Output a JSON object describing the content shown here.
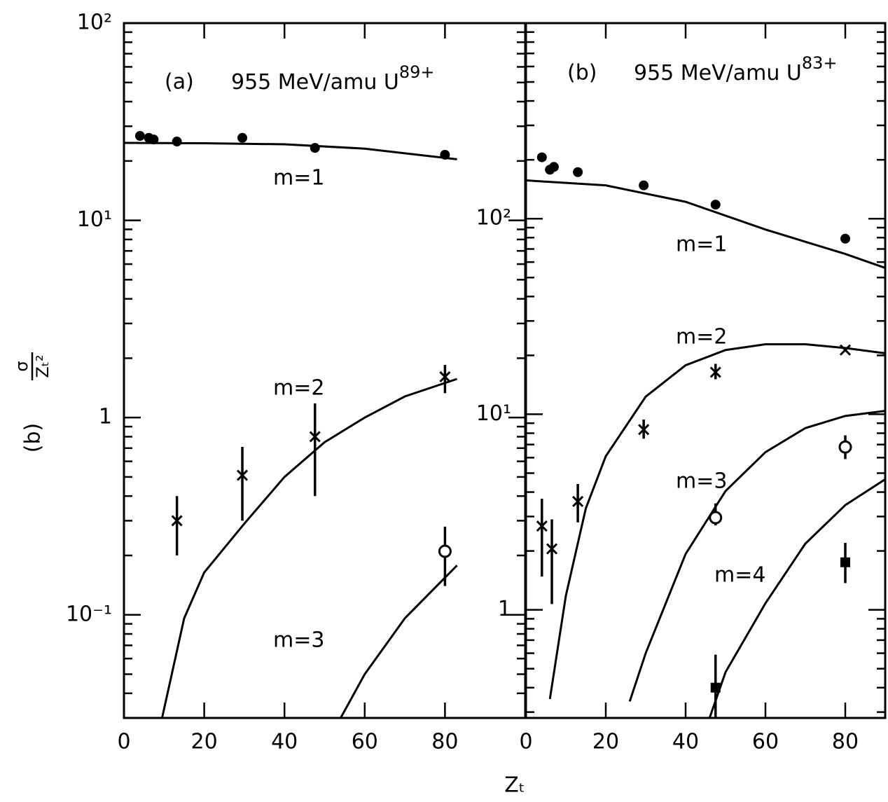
{
  "chart_data": [
    {
      "type": "line",
      "panel_label": "(a)",
      "title": "955 MeV/amu U",
      "title_sup": "89+",
      "log_y": true,
      "minor_ticks": true,
      "xlim": [
        0,
        100
      ],
      "xticks": [
        0,
        20,
        40,
        60,
        80
      ],
      "ylim": [
        0.03,
        100
      ],
      "yticks": [
        {
          "value": 0.1,
          "label": "10⁻¹"
        },
        1,
        {
          "value": 10,
          "label": "10¹"
        },
        {
          "value": 100,
          "label": "10²"
        }
      ],
      "series": [
        {
          "name": "m=1",
          "marker": "dot",
          "x": [
            4,
            6.2,
            7.4,
            13.2,
            29.5,
            47.6,
            80
          ],
          "values": [
            26.8,
            26.2,
            25.7,
            25.1,
            26.2,
            23.3,
            21.5
          ],
          "curve_x": [
            0,
            20,
            40,
            60,
            83
          ],
          "curve_values": [
            24.7,
            24.6,
            24.3,
            23.1,
            20.4
          ]
        },
        {
          "name": "m=2",
          "marker": "x",
          "x": [
            13.2,
            29.5,
            47.6,
            80
          ],
          "values": [
            0.3,
            0.51,
            0.8,
            1.61
          ],
          "err_low": [
            0.2,
            0.3,
            0.4,
            1.33
          ],
          "err_high": [
            0.4,
            0.71,
            1.18,
            1.85
          ],
          "curve_x": [
            9.5,
            15,
            20,
            30,
            40,
            50,
            60,
            70,
            83
          ],
          "curve_values": [
            0.03,
            0.096,
            0.164,
            0.29,
            0.5,
            0.75,
            1.0,
            1.28,
            1.57
          ]
        },
        {
          "name": "m=3",
          "marker": "circle",
          "x": [
            80
          ],
          "values": [
            0.21
          ],
          "err_low": [
            0.14
          ],
          "err_high": [
            0.28
          ],
          "curve_x": [
            54,
            60,
            70,
            83
          ],
          "curve_values": [
            0.03,
            0.05,
            0.096,
            0.178
          ]
        }
      ]
    },
    {
      "type": "line",
      "panel_label": "(b)",
      "title": "955 MeV/amu U",
      "title_sup": "83+",
      "log_y": true,
      "minor_ticks": true,
      "xlim": [
        0,
        90
      ],
      "xticks": [
        0,
        20,
        40,
        60,
        80
      ],
      "ylim": [
        0.28,
        1000
      ],
      "yticks": [
        1,
        {
          "value": 10,
          "label": "10¹"
        },
        {
          "value": 100,
          "label": "10²"
        }
      ],
      "series": [
        {
          "name": "m=1",
          "marker": "dot",
          "x": [
            4,
            6,
            7,
            13,
            29.5,
            47.5,
            80
          ],
          "values": [
            206,
            178,
            184,
            173,
            148,
            118,
            79
          ],
          "curve_x": [
            0,
            20,
            40,
            60,
            80,
            90
          ],
          "curve_values": [
            157,
            148,
            122,
            88,
            66,
            56
          ]
        },
        {
          "name": "m=2",
          "marker": "x",
          "x": [
            4,
            6.5,
            13,
            29.5,
            47.5,
            80
          ],
          "values": [
            2.68,
            2.05,
            3.58,
            8.35,
            16.4,
            21.3
          ],
          "err_low": [
            1.48,
            1.07,
            2.8,
            7.5,
            15.1,
            null
          ],
          "err_high": [
            3.7,
            2.9,
            4.4,
            9.4,
            18.1,
            null
          ],
          "curve_x": [
            6,
            10,
            15,
            20,
            30,
            40,
            50,
            60,
            70,
            80,
            90
          ],
          "curve_values": [
            0.35,
            1.18,
            3.3,
            6.1,
            12.3,
            17.8,
            21.3,
            22.8,
            22.8,
            21.8,
            20.5
          ]
        },
        {
          "name": "m=3",
          "marker": "circle",
          "x": [
            47.5,
            80
          ],
          "values": [
            2.96,
            6.8
          ],
          "err_low": [
            2.7,
            5.9
          ],
          "err_high": [
            3.5,
            7.8
          ],
          "curve_x": [
            26,
            30,
            40,
            50,
            60,
            70,
            80,
            90
          ],
          "curve_values": [
            0.34,
            0.6,
            1.93,
            4.05,
            6.4,
            8.5,
            9.8,
            10.4
          ]
        },
        {
          "name": "m=4",
          "marker": "square",
          "x": [
            47.5,
            80
          ],
          "values": [
            0.4,
            1.75
          ],
          "err_low": [
            0.28,
            1.37
          ],
          "err_high": [
            0.59,
            2.2
          ],
          "curve_x": [
            46,
            50,
            60,
            70,
            80,
            90
          ],
          "curve_values": [
            0.28,
            0.48,
            1.08,
            2.18,
            3.43,
            4.65
          ]
        }
      ]
    }
  ],
  "xlabel": "Zₜ",
  "ylabel": {
    "numerator": "σ",
    "denominator": "Zₜ²",
    "unit": "(b)"
  }
}
